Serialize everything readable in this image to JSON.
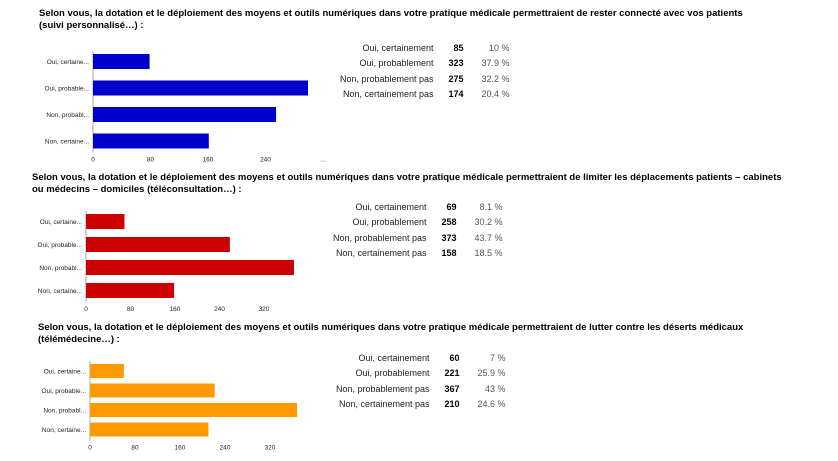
{
  "charts": [
    {
      "question": "Selon vous, la dotation et le déploiement des moyens et outils numériques dans votre pratique médicale permettraient de rester connecté avec vos patients (suivi personnalisé…) :",
      "color": "#0000cc",
      "stats": [
        {
          "label": "Oui, certainement",
          "count": "85",
          "pct": "10 %"
        },
        {
          "label": "Oui, probablement",
          "count": "323",
          "pct": "37.9 %"
        },
        {
          "label": "Non, probablement pas",
          "count": "275",
          "pct": "32.2 %"
        },
        {
          "label": "Non, certainement pas",
          "count": "174",
          "pct": "20.4 %"
        }
      ]
    },
    {
      "question": "Selon vous, la dotation et le déploiement des moyens et outils numériques dans votre pratique médicale permettraient de limiter les déplacements patients – cabinets ou médecins – domiciles (téléconsultation…) :",
      "color": "#cc0000",
      "stats": [
        {
          "label": "Oui, certainement",
          "count": "69",
          "pct": "8.1 %"
        },
        {
          "label": "Oui, probablement",
          "count": "258",
          "pct": "30.2 %"
        },
        {
          "label": "Non, probablement pas",
          "count": "373",
          "pct": "43.7 %"
        },
        {
          "label": "Non, certainement pas",
          "count": "158",
          "pct": "18.5 %"
        }
      ]
    },
    {
      "question": "Selon vous, la dotation et le déploiement des moyens et outils numériques dans votre pratique médicale permettraient de lutter contre les déserts médicaux (télémédecine…) :",
      "color": "#ff9900",
      "stats": [
        {
          "label": "Oui, certainement",
          "count": "60",
          "pct": "7 %"
        },
        {
          "label": "Oui, probablement",
          "count": "221",
          "pct": "25.9 %"
        },
        {
          "label": "Non, probablement pas",
          "count": "367",
          "pct": "43 %"
        },
        {
          "label": "Non, certainement pas",
          "count": "210",
          "pct": "24.6 %"
        }
      ]
    }
  ],
  "chart_data": [
    {
      "type": "bar",
      "orientation": "horizontal",
      "categories": [
        "Oui, certaine...",
        "Oui, probable...",
        "Non, probabl...",
        "Non, certaine..."
      ],
      "values": [
        85,
        323,
        275,
        174
      ],
      "xticks": [
        "0",
        "80",
        "160",
        "240",
        "..."
      ],
      "xlim": [
        0,
        320
      ],
      "color": "#0000cc"
    },
    {
      "type": "bar",
      "orientation": "horizontal",
      "categories": [
        "Oui, certaine...",
        "Oui, probable...",
        "Non, probabl...",
        "Non, certaine..."
      ],
      "values": [
        69,
        258,
        373,
        158
      ],
      "xticks": [
        "0",
        "80",
        "160",
        "240",
        "320"
      ],
      "xlim": [
        0,
        373
      ],
      "color": "#cc0000"
    },
    {
      "type": "bar",
      "orientation": "horizontal",
      "categories": [
        "Oui, certaine...",
        "Oui, probable...",
        "Non, probabl...",
        "Non, certaine..."
      ],
      "values": [
        60,
        221,
        367,
        210
      ],
      "xticks": [
        "0",
        "80",
        "160",
        "240",
        "320"
      ],
      "xlim": [
        0,
        367
      ],
      "color": "#ff9900"
    }
  ]
}
